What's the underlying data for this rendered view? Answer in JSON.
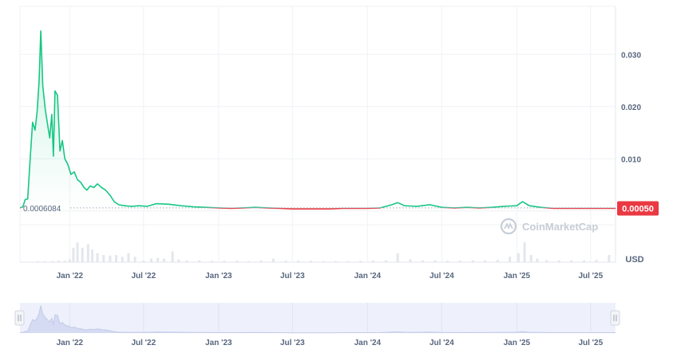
{
  "chart_data": {
    "type": "line",
    "title": "",
    "xlabel": "",
    "ylabel": "",
    "currency_label": "USD",
    "watermark": "CoinMarketCap",
    "start_price_label": "0.0006084",
    "current_price_label": "0.00050",
    "ylim": [
      -0.0098,
      0.0392
    ],
    "yticks": [
      {
        "value": 0.03,
        "label": "0.030"
      },
      {
        "value": 0.02,
        "label": "0.020"
      },
      {
        "value": 0.01,
        "label": "0.010"
      }
    ],
    "xlim": [
      "2021-09-01",
      "2025-08-31"
    ],
    "xticks": [
      {
        "date": "2022-01-01",
        "label": "Jan '22"
      },
      {
        "date": "2022-07-01",
        "label": "Jul '22"
      },
      {
        "date": "2023-01-01",
        "label": "Jan '23"
      },
      {
        "date": "2023-07-01",
        "label": "Jul '23"
      },
      {
        "date": "2024-01-01",
        "label": "Jan '24"
      },
      {
        "date": "2024-07-01",
        "label": "Jul '24"
      },
      {
        "date": "2025-01-01",
        "label": "Jan '25"
      },
      {
        "date": "2025-07-01",
        "label": "Jul '25"
      }
    ],
    "baseline": 0.0006084,
    "colors": {
      "up": "#16c784",
      "down": "#ea3943",
      "grid": "#eff2f5",
      "axis_text": "#58667e",
      "navigator": "#eef1fc"
    },
    "series": [
      {
        "points": [
          [
            "2021-09-01",
            0.0006
          ],
          [
            "2021-09-08",
            0.0008
          ],
          [
            "2021-09-14",
            0.0022
          ],
          [
            "2021-09-20",
            0.0023
          ],
          [
            "2021-09-26",
            0.01
          ],
          [
            "2021-10-02",
            0.017
          ],
          [
            "2021-10-08",
            0.0155
          ],
          [
            "2021-10-13",
            0.019
          ],
          [
            "2021-10-18",
            0.025
          ],
          [
            "2021-10-22",
            0.0345
          ],
          [
            "2021-10-27",
            0.024
          ],
          [
            "2021-11-02",
            0.0195
          ],
          [
            "2021-11-08",
            0.0165
          ],
          [
            "2021-11-13",
            0.014
          ],
          [
            "2021-11-18",
            0.0185
          ],
          [
            "2021-11-22",
            0.0105
          ],
          [
            "2021-11-26",
            0.023
          ],
          [
            "2021-12-02",
            0.0222
          ],
          [
            "2021-12-08",
            0.0115
          ],
          [
            "2021-12-14",
            0.0135
          ],
          [
            "2021-12-20",
            0.01
          ],
          [
            "2021-12-27",
            0.009
          ],
          [
            "2022-01-04",
            0.007
          ],
          [
            "2022-01-12",
            0.0075
          ],
          [
            "2022-01-20",
            0.006
          ],
          [
            "2022-01-28",
            0.0055
          ],
          [
            "2022-02-05",
            0.0045
          ],
          [
            "2022-02-12",
            0.004
          ],
          [
            "2022-02-20",
            0.0048
          ],
          [
            "2022-03-01",
            0.0045
          ],
          [
            "2022-03-10",
            0.0052
          ],
          [
            "2022-03-20",
            0.0045
          ],
          [
            "2022-03-30",
            0.004
          ],
          [
            "2022-04-10",
            0.003
          ],
          [
            "2022-04-20",
            0.0018
          ],
          [
            "2022-05-01",
            0.0012
          ],
          [
            "2022-05-15",
            0.001
          ],
          [
            "2022-06-01",
            0.0009
          ],
          [
            "2022-06-20",
            0.001
          ],
          [
            "2022-07-10",
            0.0009
          ],
          [
            "2022-08-01",
            0.0014
          ],
          [
            "2022-09-01",
            0.0013
          ],
          [
            "2022-10-01",
            0.001
          ],
          [
            "2022-11-01",
            0.0008
          ],
          [
            "2022-12-01",
            0.0007
          ],
          [
            "2023-01-01",
            0.0006
          ],
          [
            "2023-02-01",
            0.0005
          ],
          [
            "2023-03-01",
            0.0006
          ],
          [
            "2023-04-01",
            0.0007
          ],
          [
            "2023-05-01",
            0.0006
          ],
          [
            "2023-06-01",
            0.0005
          ],
          [
            "2023-07-01",
            0.0004
          ],
          [
            "2023-08-01",
            0.0004
          ],
          [
            "2023-09-01",
            0.0004
          ],
          [
            "2023-10-01",
            0.0004
          ],
          [
            "2023-11-01",
            0.0005
          ],
          [
            "2023-12-01",
            0.0005
          ],
          [
            "2024-01-01",
            0.0005
          ],
          [
            "2024-02-01",
            0.0006
          ],
          [
            "2024-03-01",
            0.0012
          ],
          [
            "2024-03-15",
            0.0016
          ],
          [
            "2024-04-01",
            0.001
          ],
          [
            "2024-05-01",
            0.0009
          ],
          [
            "2024-06-01",
            0.0012
          ],
          [
            "2024-07-01",
            0.0007
          ],
          [
            "2024-08-01",
            0.0006
          ],
          [
            "2024-09-01",
            0.0007
          ],
          [
            "2024-10-01",
            0.0006
          ],
          [
            "2024-11-01",
            0.0007
          ],
          [
            "2024-12-01",
            0.0009
          ],
          [
            "2025-01-01",
            0.001
          ],
          [
            "2025-01-15",
            0.0018
          ],
          [
            "2025-02-01",
            0.001
          ],
          [
            "2025-03-01",
            0.0007
          ],
          [
            "2025-04-01",
            0.0005
          ],
          [
            "2025-05-01",
            0.0005
          ],
          [
            "2025-06-01",
            0.0005
          ],
          [
            "2025-07-01",
            0.0005
          ],
          [
            "2025-08-01",
            0.0005
          ],
          [
            "2025-08-31",
            0.0005
          ]
        ]
      }
    ],
    "volume": [
      [
        "2021-09-15",
        0.01
      ],
      [
        "2021-10-15",
        0.03
      ],
      [
        "2021-11-01",
        0.03
      ],
      [
        "2021-11-20",
        0.035
      ],
      [
        "2021-12-05",
        0.04
      ],
      [
        "2021-12-20",
        0.04
      ],
      [
        "2022-01-01",
        0.08
      ],
      [
        "2022-01-10",
        0.4
      ],
      [
        "2022-01-20",
        0.55
      ],
      [
        "2022-02-01",
        0.4
      ],
      [
        "2022-02-15",
        0.5
      ],
      [
        "2022-02-25",
        0.35
      ],
      [
        "2022-03-10",
        0.25
      ],
      [
        "2022-03-25",
        0.2
      ],
      [
        "2022-04-10",
        0.18
      ],
      [
        "2022-04-25",
        0.2
      ],
      [
        "2022-05-10",
        0.15
      ],
      [
        "2022-05-25",
        0.25
      ],
      [
        "2022-06-10",
        0.15
      ],
      [
        "2022-07-01",
        0.05
      ],
      [
        "2022-07-20",
        0.1
      ],
      [
        "2022-08-05",
        0.12
      ],
      [
        "2022-08-20",
        0.1
      ],
      [
        "2022-09-10",
        0.3
      ],
      [
        "2022-09-25",
        0.08
      ],
      [
        "2022-10-15",
        0.05
      ],
      [
        "2022-11-15",
        0.05
      ],
      [
        "2022-12-15",
        0.04
      ],
      [
        "2023-01-15",
        0.04
      ],
      [
        "2023-02-15",
        0.04
      ],
      [
        "2023-03-15",
        0.03
      ],
      [
        "2023-04-15",
        0.05
      ],
      [
        "2023-05-15",
        0.1
      ],
      [
        "2023-06-15",
        0.04
      ],
      [
        "2023-07-15",
        0.04
      ],
      [
        "2023-08-15",
        0.04
      ],
      [
        "2023-09-15",
        0.03
      ],
      [
        "2023-10-15",
        0.03
      ],
      [
        "2023-11-15",
        0.03
      ],
      [
        "2023-12-15",
        0.04
      ],
      [
        "2024-01-15",
        0.04
      ],
      [
        "2024-02-15",
        0.05
      ],
      [
        "2024-03-15",
        0.25
      ],
      [
        "2024-04-15",
        0.08
      ],
      [
        "2024-05-15",
        0.05
      ],
      [
        "2024-06-15",
        0.05
      ],
      [
        "2024-07-15",
        0.04
      ],
      [
        "2024-08-15",
        0.04
      ],
      [
        "2024-09-15",
        0.05
      ],
      [
        "2024-10-15",
        0.05
      ],
      [
        "2024-11-15",
        0.06
      ],
      [
        "2024-12-15",
        0.15
      ],
      [
        "2025-01-05",
        0.25
      ],
      [
        "2025-01-20",
        0.55
      ],
      [
        "2025-02-05",
        0.2
      ],
      [
        "2025-02-20",
        0.1
      ],
      [
        "2025-03-15",
        0.06
      ],
      [
        "2025-04-15",
        0.05
      ],
      [
        "2025-05-15",
        0.05
      ],
      [
        "2025-06-15",
        0.05
      ],
      [
        "2025-07-15",
        0.06
      ],
      [
        "2025-08-15",
        0.2
      ]
    ]
  }
}
